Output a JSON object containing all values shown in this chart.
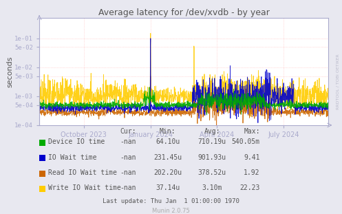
{
  "title": "Average latency for /dev/xvdb - by year",
  "ylabel": "seconds",
  "bg_color": "#e8e8f0",
  "plot_bg_color": "#ffffff",
  "grid_color": "#ffaaaa",
  "ylim_min": 0.0001,
  "ylim_max": 0.5,
  "yticks": [
    0.0001,
    0.0005,
    0.001,
    0.005,
    0.01,
    0.05,
    0.1
  ],
  "ytick_labels": [
    "1e-04",
    "5e-04",
    "1e-03",
    "5e-03",
    "1e-02",
    "5e-02",
    "1e-01"
  ],
  "xtick_labels": [
    "October 2023",
    "January 2024",
    "April 2024",
    "July 2024"
  ],
  "xtick_pos": [
    0.154,
    0.385,
    0.615,
    0.846
  ],
  "legend_entries": [
    {
      "label": "Device IO time",
      "color": "#00aa00"
    },
    {
      "label": "IO Wait time",
      "color": "#0000cc"
    },
    {
      "label": "Read IO Wait time",
      "color": "#cc6600"
    },
    {
      "label": "Write IO Wait time",
      "color": "#ffcc00"
    }
  ],
  "stats_headers": [
    "Cur:",
    "Min:",
    "Avg:",
    "Max:"
  ],
  "stats": [
    [
      "-nan",
      "64.10u",
      "710.19u",
      "540.05m"
    ],
    [
      "-nan",
      "231.45u",
      "901.93u",
      "9.41"
    ],
    [
      "-nan",
      "202.20u",
      "378.52u",
      "1.92"
    ],
    [
      "-nan",
      "37.14u",
      "3.10m",
      "22.23"
    ]
  ],
  "footer": "Last update: Thu Jan  1 01:00:00 1970",
  "munin_version": "Munin 2.0.75",
  "rrdtool_label": "RRDTOOL / TOBI OETIKER",
  "axis_color": "#aaaacc",
  "text_color": "#555555"
}
